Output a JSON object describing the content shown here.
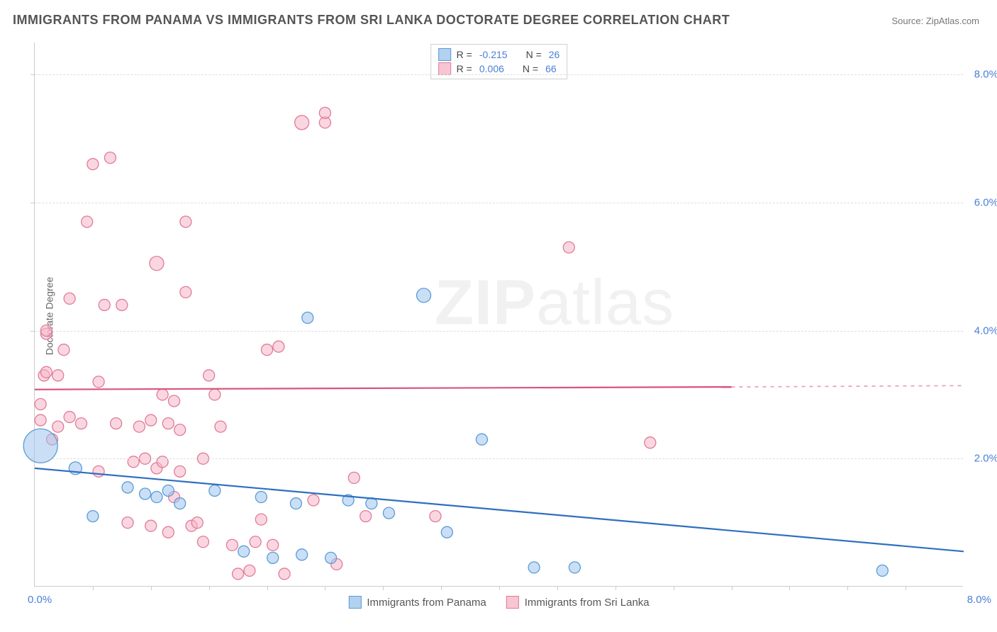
{
  "title": "IMMIGRANTS FROM PANAMA VS IMMIGRANTS FROM SRI LANKA DOCTORATE DEGREE CORRELATION CHART",
  "source_label": "Source: ZipAtlas.com",
  "watermark_left": "ZIP",
  "watermark_right": "atlas",
  "ylabel": "Doctorate Degree",
  "chart": {
    "type": "scatter",
    "xlim": [
      0.0,
      8.0
    ],
    "ylim": [
      0.0,
      8.5
    ],
    "xtick_origin": "0.0%",
    "xtick_end": "8.0%",
    "yticks": [
      2.0,
      4.0,
      6.0,
      8.0
    ],
    "ytick_labels": [
      "2.0%",
      "4.0%",
      "6.0%",
      "8.0%"
    ],
    "xticks_minor": [
      0.5,
      1.0,
      1.5,
      2.0,
      2.5,
      3.0,
      3.5,
      4.0,
      4.5,
      5.0,
      5.5,
      6.0,
      6.5,
      7.0,
      7.5
    ],
    "background_color": "#ffffff",
    "grid_color": "#dddddd",
    "axis_color": "#cccccc",
    "tick_label_color": "#4a7fd8"
  },
  "series": [
    {
      "name": "Immigrants from Panama",
      "short": "panama",
      "fill": "#9ec4ef",
      "fill_opacity": 0.55,
      "stroke": "#5a9bd5",
      "legend_fill": "#b3d1f0",
      "legend_border": "#5a9bd5",
      "R": "-0.215",
      "N": "26",
      "trend": {
        "x1": 0.0,
        "y1": 1.85,
        "x2": 8.0,
        "y2": 0.55,
        "color": "#2f6fc0",
        "width": 2.2
      },
      "points": [
        {
          "x": 0.05,
          "y": 2.2,
          "r": 24
        },
        {
          "x": 0.35,
          "y": 1.85,
          "r": 9
        },
        {
          "x": 0.5,
          "y": 1.1,
          "r": 8
        },
        {
          "x": 0.8,
          "y": 1.55,
          "r": 8
        },
        {
          "x": 0.95,
          "y": 1.45,
          "r": 8
        },
        {
          "x": 1.05,
          "y": 1.4,
          "r": 8
        },
        {
          "x": 1.15,
          "y": 1.5,
          "r": 8
        },
        {
          "x": 1.25,
          "y": 1.3,
          "r": 8
        },
        {
          "x": 1.55,
          "y": 1.5,
          "r": 8
        },
        {
          "x": 1.8,
          "y": 0.55,
          "r": 8
        },
        {
          "x": 1.95,
          "y": 1.4,
          "r": 8
        },
        {
          "x": 2.05,
          "y": 0.45,
          "r": 8
        },
        {
          "x": 2.25,
          "y": 1.3,
          "r": 8
        },
        {
          "x": 2.3,
          "y": 0.5,
          "r": 8
        },
        {
          "x": 2.35,
          "y": 4.2,
          "r": 8
        },
        {
          "x": 2.55,
          "y": 0.45,
          "r": 8
        },
        {
          "x": 2.7,
          "y": 1.35,
          "r": 8
        },
        {
          "x": 2.9,
          "y": 1.3,
          "r": 8
        },
        {
          "x": 3.05,
          "y": 1.15,
          "r": 8
        },
        {
          "x": 3.35,
          "y": 4.55,
          "r": 10
        },
        {
          "x": 3.55,
          "y": 0.85,
          "r": 8
        },
        {
          "x": 3.85,
          "y": 2.3,
          "r": 8
        },
        {
          "x": 4.3,
          "y": 0.3,
          "r": 8
        },
        {
          "x": 4.65,
          "y": 0.3,
          "r": 8
        },
        {
          "x": 7.3,
          "y": 0.25,
          "r": 8
        }
      ]
    },
    {
      "name": "Immigrants from Sri Lanka",
      "short": "srilanka",
      "fill": "#f5b6c6",
      "fill_opacity": 0.55,
      "stroke": "#e17a9a",
      "legend_fill": "#f8c5d3",
      "legend_border": "#e17a9a",
      "R": "0.006",
      "N": "66",
      "trend": {
        "x1": 0.0,
        "y1": 3.08,
        "x2": 6.0,
        "y2": 3.12,
        "color": "#d9547d",
        "width": 2.2,
        "dash_x1": 6.0,
        "dash_y1": 3.12,
        "dash_x2": 8.0,
        "dash_y2": 3.14
      },
      "points": [
        {
          "x": 0.05,
          "y": 2.6,
          "r": 8
        },
        {
          "x": 0.05,
          "y": 2.85,
          "r": 8
        },
        {
          "x": 0.08,
          "y": 3.3,
          "r": 8
        },
        {
          "x": 0.1,
          "y": 3.35,
          "r": 8
        },
        {
          "x": 0.1,
          "y": 3.95,
          "r": 8
        },
        {
          "x": 0.1,
          "y": 4.0,
          "r": 8
        },
        {
          "x": 0.15,
          "y": 2.3,
          "r": 8
        },
        {
          "x": 0.2,
          "y": 2.5,
          "r": 8
        },
        {
          "x": 0.2,
          "y": 3.3,
          "r": 8
        },
        {
          "x": 0.25,
          "y": 3.7,
          "r": 8
        },
        {
          "x": 0.3,
          "y": 2.65,
          "r": 8
        },
        {
          "x": 0.3,
          "y": 4.5,
          "r": 8
        },
        {
          "x": 0.4,
          "y": 2.55,
          "r": 8
        },
        {
          "x": 0.45,
          "y": 5.7,
          "r": 8
        },
        {
          "x": 0.5,
          "y": 6.6,
          "r": 8
        },
        {
          "x": 0.55,
          "y": 3.2,
          "r": 8
        },
        {
          "x": 0.55,
          "y": 1.8,
          "r": 8
        },
        {
          "x": 0.6,
          "y": 4.4,
          "r": 8
        },
        {
          "x": 0.65,
          "y": 6.7,
          "r": 8
        },
        {
          "x": 0.7,
          "y": 2.55,
          "r": 8
        },
        {
          "x": 0.75,
          "y": 4.4,
          "r": 8
        },
        {
          "x": 0.8,
          "y": 1.0,
          "r": 8
        },
        {
          "x": 0.85,
          "y": 1.95,
          "r": 8
        },
        {
          "x": 0.9,
          "y": 2.5,
          "r": 8
        },
        {
          "x": 0.95,
          "y": 2.0,
          "r": 8
        },
        {
          "x": 1.0,
          "y": 2.6,
          "r": 8
        },
        {
          "x": 1.0,
          "y": 0.95,
          "r": 8
        },
        {
          "x": 1.05,
          "y": 5.05,
          "r": 10
        },
        {
          "x": 1.05,
          "y": 1.85,
          "r": 8
        },
        {
          "x": 1.1,
          "y": 3.0,
          "r": 8
        },
        {
          "x": 1.1,
          "y": 1.95,
          "r": 8
        },
        {
          "x": 1.15,
          "y": 2.55,
          "r": 8
        },
        {
          "x": 1.15,
          "y": 0.85,
          "r": 8
        },
        {
          "x": 1.2,
          "y": 2.9,
          "r": 8
        },
        {
          "x": 1.2,
          "y": 1.4,
          "r": 8
        },
        {
          "x": 1.25,
          "y": 2.45,
          "r": 8
        },
        {
          "x": 1.25,
          "y": 1.8,
          "r": 8
        },
        {
          "x": 1.3,
          "y": 5.7,
          "r": 8
        },
        {
          "x": 1.3,
          "y": 4.6,
          "r": 8
        },
        {
          "x": 1.35,
          "y": 0.95,
          "r": 8
        },
        {
          "x": 1.4,
          "y": 1.0,
          "r": 8
        },
        {
          "x": 1.45,
          "y": 0.7,
          "r": 8
        },
        {
          "x": 1.45,
          "y": 2.0,
          "r": 8
        },
        {
          "x": 1.5,
          "y": 3.3,
          "r": 8
        },
        {
          "x": 1.55,
          "y": 3.0,
          "r": 8
        },
        {
          "x": 1.6,
          "y": 2.5,
          "r": 8
        },
        {
          "x": 1.7,
          "y": 0.65,
          "r": 8
        },
        {
          "x": 1.75,
          "y": 0.2,
          "r": 8
        },
        {
          "x": 1.85,
          "y": 0.25,
          "r": 8
        },
        {
          "x": 1.9,
          "y": 0.7,
          "r": 8
        },
        {
          "x": 1.95,
          "y": 1.05,
          "r": 8
        },
        {
          "x": 2.0,
          "y": 3.7,
          "r": 8
        },
        {
          "x": 2.05,
          "y": 0.65,
          "r": 8
        },
        {
          "x": 2.1,
          "y": 3.75,
          "r": 8
        },
        {
          "x": 2.15,
          "y": 0.2,
          "r": 8
        },
        {
          "x": 2.3,
          "y": 7.25,
          "r": 10
        },
        {
          "x": 2.4,
          "y": 1.35,
          "r": 8
        },
        {
          "x": 2.5,
          "y": 7.25,
          "r": 8
        },
        {
          "x": 2.5,
          "y": 7.4,
          "r": 8
        },
        {
          "x": 2.6,
          "y": 0.35,
          "r": 8
        },
        {
          "x": 2.75,
          "y": 1.7,
          "r": 8
        },
        {
          "x": 2.85,
          "y": 1.1,
          "r": 8
        },
        {
          "x": 3.45,
          "y": 1.1,
          "r": 8
        },
        {
          "x": 4.6,
          "y": 5.3,
          "r": 8
        },
        {
          "x": 5.3,
          "y": 2.25,
          "r": 8
        }
      ]
    }
  ],
  "legend_bottom": [
    {
      "series": 0
    },
    {
      "series": 1
    }
  ],
  "legend_top_heading": {
    "r_label": "R =",
    "n_label": "N ="
  }
}
